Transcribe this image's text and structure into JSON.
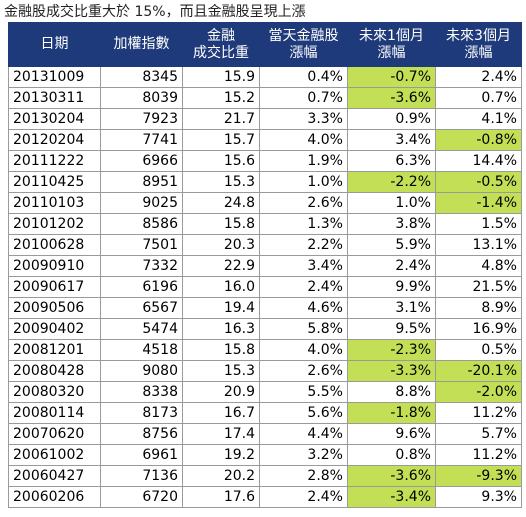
{
  "title": "金融股成交比重大於 15%，而且金融股呈現上漲",
  "colors": {
    "header_bg": "#1f3a7a",
    "header_text": "#ffffff",
    "negative_highlight": "#c3df56",
    "border": "#9a9a9a"
  },
  "table": {
    "headers": [
      [
        "日期"
      ],
      [
        "加權指數"
      ],
      [
        "金融",
        "成交比重"
      ],
      [
        "當天金融股",
        "漲幅"
      ],
      [
        "未來1個月",
        "漲幅"
      ],
      [
        "未來3個月",
        "漲幅"
      ]
    ],
    "rows": [
      [
        "20131009",
        "8345",
        "15.9",
        "0.4%",
        "-0.7%",
        "2.4%"
      ],
      [
        "20130311",
        "8039",
        "15.2",
        "0.7%",
        "-3.6%",
        "0.7%"
      ],
      [
        "20130204",
        "7923",
        "21.7",
        "3.3%",
        "0.9%",
        "4.1%"
      ],
      [
        "20120204",
        "7741",
        "15.7",
        "4.0%",
        "3.4%",
        "-0.8%"
      ],
      [
        "20111222",
        "6966",
        "15.6",
        "1.9%",
        "6.3%",
        "14.4%"
      ],
      [
        "20110425",
        "8951",
        "15.3",
        "1.0%",
        "-2.2%",
        "-0.5%"
      ],
      [
        "20110103",
        "9025",
        "24.8",
        "2.6%",
        "1.0%",
        "-1.4%"
      ],
      [
        "20101202",
        "8586",
        "15.8",
        "1.3%",
        "3.8%",
        "1.5%"
      ],
      [
        "20100628",
        "7501",
        "20.3",
        "2.2%",
        "5.9%",
        "13.1%"
      ],
      [
        "20090910",
        "7332",
        "22.9",
        "3.4%",
        "2.4%",
        "4.8%"
      ],
      [
        "20090617",
        "6196",
        "16.0",
        "2.4%",
        "9.9%",
        "21.5%"
      ],
      [
        "20090506",
        "6567",
        "19.4",
        "4.6%",
        "3.1%",
        "8.9%"
      ],
      [
        "20090402",
        "5474",
        "16.3",
        "5.8%",
        "9.5%",
        "16.9%"
      ],
      [
        "20081201",
        "4518",
        "15.8",
        "4.0%",
        "-2.3%",
        "0.5%"
      ],
      [
        "20080428",
        "9080",
        "15.3",
        "2.6%",
        "-3.3%",
        "-20.1%"
      ],
      [
        "20080320",
        "8338",
        "20.9",
        "5.5%",
        "8.8%",
        "-2.0%"
      ],
      [
        "20080114",
        "8173",
        "16.7",
        "5.6%",
        "-1.8%",
        "11.2%"
      ],
      [
        "20070620",
        "8756",
        "17.4",
        "4.4%",
        "9.6%",
        "5.7%"
      ],
      [
        "20061002",
        "6961",
        "19.2",
        "3.2%",
        "0.8%",
        "11.2%"
      ],
      [
        "20060427",
        "7136",
        "20.2",
        "2.8%",
        "-3.6%",
        "-9.3%"
      ],
      [
        "20060206",
        "6720",
        "17.6",
        "2.4%",
        "-3.4%",
        "9.3%"
      ]
    ]
  }
}
